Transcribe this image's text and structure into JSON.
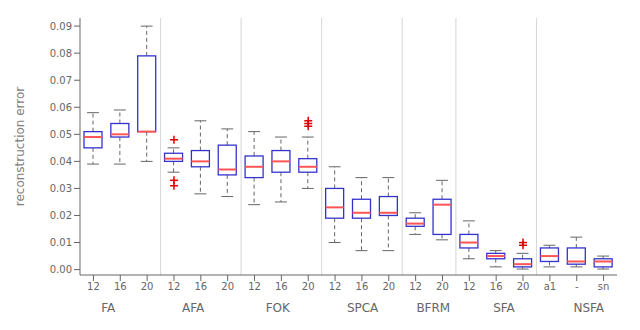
{
  "chart_data": {
    "type": "box",
    "ylabel": "reconstruction error",
    "ylim": [
      -0.002,
      0.093
    ],
    "yticks": [
      {
        "value": 0,
        "label": "0.00"
      },
      0.01,
      0.02,
      0.03,
      0.04,
      0.05,
      0.06,
      0.07,
      0.08,
      0.09
    ],
    "groups": [
      {
        "name": "FA",
        "categories": [
          "12",
          "16",
          "20"
        ]
      },
      {
        "name": "AFA",
        "categories": [
          "12",
          "16",
          "20"
        ]
      },
      {
        "name": "FOK",
        "categories": [
          "12",
          "16",
          "20"
        ]
      },
      {
        "name": "SPCA",
        "categories": [
          "12",
          "16",
          "20"
        ]
      },
      {
        "name": "BFRM",
        "categories": [
          "12",
          "20"
        ]
      },
      {
        "name": "SFA",
        "categories": [
          "12",
          "16",
          "20"
        ]
      },
      {
        "name": "NSFA",
        "categories": [
          "a1",
          "-",
          "sn"
        ]
      }
    ],
    "boxes": {
      "color": "#3333cc",
      "q1": [
        0.045,
        0.049,
        0.051,
        0.04,
        0.038,
        0.035,
        0.034,
        0.036,
        0.036,
        0.019,
        0.019,
        0.02,
        0.016,
        0.013,
        0.008,
        0.004,
        0.001,
        0.003,
        0.002,
        0.001
      ],
      "q3": [
        0.051,
        0.054,
        0.079,
        0.043,
        0.044,
        0.046,
        0.042,
        0.044,
        0.041,
        0.03,
        0.026,
        0.027,
        0.019,
        0.026,
        0.013,
        0.006,
        0.004,
        0.008,
        0.008,
        0.004
      ]
    },
    "medians": {
      "color": "#ff5555",
      "values": [
        0.049,
        0.05,
        0.051,
        0.041,
        0.04,
        0.037,
        0.038,
        0.04,
        0.038,
        0.023,
        0.021,
        0.021,
        0.017,
        0.024,
        0.01,
        0.005,
        0.002,
        0.005,
        0.003,
        0.003
      ]
    },
    "whiskers": {
      "color": "#666666",
      "low": [
        0.039,
        0.039,
        0.04,
        0.036,
        0.028,
        0.027,
        0.024,
        0.025,
        0.03,
        0.01,
        0.007,
        0.007,
        0.013,
        0.011,
        0.004,
        0.001,
        0.0002,
        0.001,
        0.001,
        0.0002
      ],
      "high": [
        0.058,
        0.059,
        0.09,
        0.045,
        0.055,
        0.052,
        0.051,
        0.049,
        0.049,
        0.038,
        0.034,
        0.034,
        0.021,
        0.033,
        0.018,
        0.007,
        0.006,
        0.009,
        0.012,
        0.005
      ]
    },
    "fliers": {
      "color": "#dd0000",
      "values": [
        [],
        [],
        [],
        [
          0.048,
          0.033,
          0.031
        ],
        [],
        [],
        [],
        [],
        [
          0.053,
          0.054,
          0.055
        ],
        [],
        [],
        [],
        [],
        [],
        [],
        [],
        [
          0.009,
          0.01
        ],
        [],
        [],
        []
      ]
    }
  }
}
